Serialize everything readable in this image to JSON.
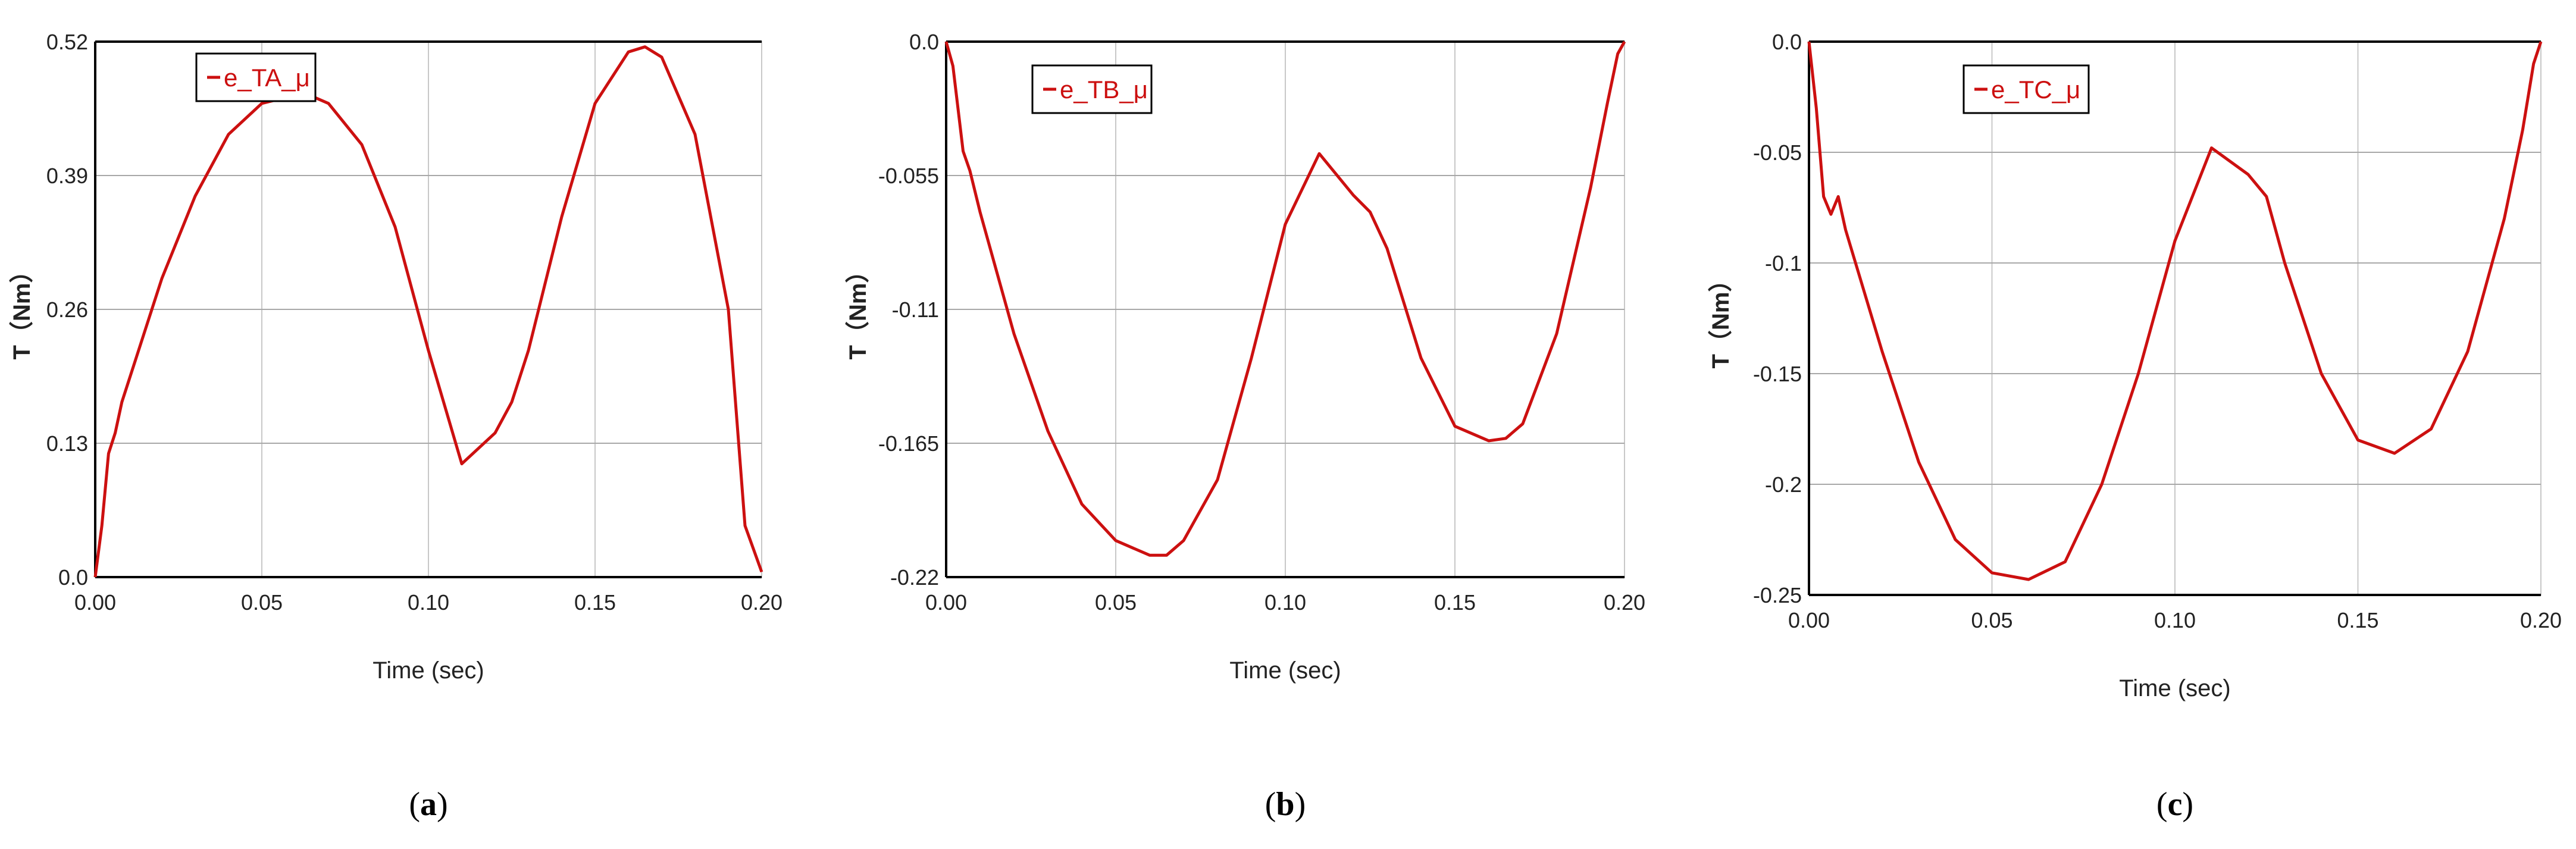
{
  "chart_data": [
    {
      "type": "line",
      "caption": "a",
      "xlabel": "Time (sec)",
      "ylabel": "T（Nm）",
      "xlim": [
        0,
        0.2
      ],
      "ylim": [
        0,
        0.52
      ],
      "xticks": [
        "0.00",
        "0.05",
        "0.10",
        "0.15",
        "0.20"
      ],
      "yticks": [
        "0.0",
        "0.13",
        "0.26",
        "0.39",
        "0.52"
      ],
      "grid": true,
      "legend_position": "top-left",
      "series": [
        {
          "name": "e_TA_μ",
          "color": "#cc1010",
          "x": [
            0,
            0.002,
            0.004,
            0.006,
            0.008,
            0.01,
            0.015,
            0.02,
            0.03,
            0.04,
            0.05,
            0.06,
            0.065,
            0.07,
            0.08,
            0.09,
            0.1,
            0.11,
            0.12,
            0.125,
            0.13,
            0.14,
            0.15,
            0.16,
            0.165,
            0.17,
            0.18,
            0.19,
            0.195,
            0.2
          ],
          "y": [
            0,
            0.05,
            0.12,
            0.14,
            0.17,
            0.19,
            0.24,
            0.29,
            0.37,
            0.43,
            0.46,
            0.468,
            0.467,
            0.46,
            0.42,
            0.34,
            0.22,
            0.11,
            0.14,
            0.17,
            0.22,
            0.35,
            0.46,
            0.51,
            0.515,
            0.505,
            0.43,
            0.26,
            0.05,
            0.005
          ]
        }
      ]
    },
    {
      "type": "line",
      "caption": "b",
      "xlabel": "Time (sec)",
      "ylabel": "T（Nm）",
      "xlim": [
        0,
        0.2
      ],
      "ylim": [
        -0.22,
        0
      ],
      "xticks": [
        "0.00",
        "0.05",
        "0.10",
        "0.15",
        "0.20"
      ],
      "yticks": [
        "-0.22",
        "-0.165",
        "-0.11",
        "-0.055",
        "0.0"
      ],
      "grid": true,
      "legend_position": "top-left",
      "series": [
        {
          "name": "e_TB_μ",
          "color": "#cc1010",
          "x": [
            0,
            0.002,
            0.005,
            0.007,
            0.01,
            0.02,
            0.03,
            0.04,
            0.05,
            0.06,
            0.065,
            0.07,
            0.08,
            0.09,
            0.1,
            0.11,
            0.12,
            0.125,
            0.13,
            0.14,
            0.15,
            0.16,
            0.165,
            0.17,
            0.18,
            0.19,
            0.195,
            0.198,
            0.2
          ],
          "y": [
            0,
            -0.01,
            -0.045,
            -0.053,
            -0.07,
            -0.12,
            -0.16,
            -0.19,
            -0.205,
            -0.211,
            -0.211,
            -0.205,
            -0.18,
            -0.13,
            -0.075,
            -0.046,
            -0.063,
            -0.07,
            -0.085,
            -0.13,
            -0.158,
            -0.164,
            -0.163,
            -0.157,
            -0.12,
            -0.06,
            -0.025,
            -0.005,
            0
          ]
        }
      ]
    },
    {
      "type": "line",
      "caption": "c",
      "xlabel": "Time (sec)",
      "ylabel": "T（Nm）",
      "xlim": [
        0,
        0.2
      ],
      "ylim": [
        -0.25,
        0
      ],
      "xticks": [
        "0.00",
        "0.05",
        "0.10",
        "0.15",
        "0.20"
      ],
      "yticks": [
        "-0.25",
        "-0.2",
        "-0.15",
        "-0.1",
        "-0.05",
        "0.0"
      ],
      "grid": true,
      "legend_position": "top-left",
      "series": [
        {
          "name": "e_TC_μ",
          "color": "#cc1010",
          "x": [
            0,
            0.002,
            0.004,
            0.006,
            0.008,
            0.01,
            0.02,
            0.03,
            0.04,
            0.05,
            0.06,
            0.07,
            0.08,
            0.09,
            0.1,
            0.11,
            0.12,
            0.125,
            0.13,
            0.14,
            0.15,
            0.16,
            0.17,
            0.18,
            0.19,
            0.195,
            0.198,
            0.2
          ],
          "y": [
            0,
            -0.03,
            -0.07,
            -0.078,
            -0.07,
            -0.085,
            -0.14,
            -0.19,
            -0.225,
            -0.24,
            -0.243,
            -0.235,
            -0.2,
            -0.15,
            -0.09,
            -0.048,
            -0.06,
            -0.07,
            -0.1,
            -0.15,
            -0.18,
            -0.186,
            -0.175,
            -0.14,
            -0.08,
            -0.04,
            -0.01,
            0
          ]
        }
      ]
    }
  ]
}
